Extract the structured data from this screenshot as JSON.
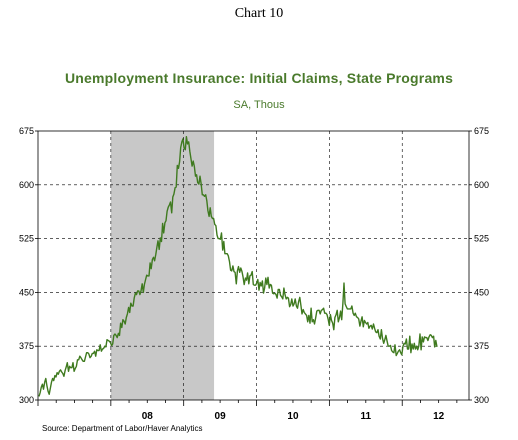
{
  "chart_number": "Chart 10",
  "colors": {
    "series_line": "#3f7a1f",
    "title_text": "#4a7a2c",
    "recession_shade": "#c8c8c8",
    "grid": "#000000"
  },
  "chart_data": {
    "type": "line",
    "title": "Unemployment Insurance: Initial Claims, State Programs",
    "subtitle": "SA, Thous",
    "source": "Source:  Department of Labor/Haver Analytics",
    "ylim": [
      300,
      675
    ],
    "yticks_left": [
      "675",
      "600",
      "525",
      "450",
      "375",
      "300"
    ],
    "yticks_right": [
      "675",
      "600",
      "525",
      "450",
      "375",
      "300"
    ],
    "ytick_values": [
      675,
      600,
      525,
      450,
      375,
      300
    ],
    "xlim": [
      "2007-01",
      "2012-12"
    ],
    "xtick_labels": [
      "08",
      "09",
      "10",
      "11",
      "12"
    ],
    "grid": true,
    "grid_style": "dashed",
    "recession_shading": {
      "start": "2008-01",
      "end": "2009-06"
    },
    "series": [
      {
        "frequency": "weekly",
        "x_start": "2007-01-06",
        "x_end": "2012-06-23",
        "values": [
          305,
          310,
          318,
          322,
          315,
          325,
          330,
          320,
          312,
          308,
          316,
          325,
          330,
          327,
          334,
          332,
          338,
          336,
          340,
          342,
          339,
          337,
          333,
          341,
          346,
          352,
          340,
          347,
          345,
          345,
          352,
          340,
          344,
          347,
          356,
          356,
          361,
          359,
          356,
          354,
          354,
          360,
          366,
          366,
          364,
          359,
          361,
          365,
          365,
          368,
          361,
          370,
          369,
          369,
          377,
          368,
          371,
          372,
          375,
          374,
          384,
          383,
          382,
          380,
          376,
          378,
          390,
          392,
          390,
          387,
          393,
          390,
          407,
          401,
          412,
          410,
          406,
          415,
          420,
          429,
          422,
          435,
          431,
          431,
          442,
          449,
          447,
          452,
          452,
          447,
          452,
          462,
          450,
          461,
          468,
          474,
          473,
          473,
          491,
          483,
          496,
          499,
          494,
          503,
          513,
          522,
          510,
          526,
          521,
          546,
          533,
          547,
          550,
          563,
          569,
          572,
          576,
          561,
          583,
          587,
          596,
          597,
          627,
          623,
          632,
          652,
          660,
          664,
          651,
          649,
          667,
          657,
          660,
          647,
          637,
          626,
          633,
          626,
          612,
          614,
          603,
          601,
          612,
          602,
          586,
          586,
          584,
          586,
          578,
          564,
          556,
          568,
          556,
          553,
          553,
          545,
          543,
          530,
          525,
          525,
          524,
          533,
          509,
          521,
          504,
          504,
          504,
          501,
          493,
          481,
          480,
          487,
          479,
          478,
          462,
          480,
          486,
          478,
          484,
          479,
          471,
          461,
          470,
          467,
          477,
          462,
          473,
          474,
          479,
          461,
          460,
          460,
          463,
          468,
          453,
          464,
          459,
          466,
          449,
          456,
          470,
          461,
          471,
          456,
          461,
          460,
          449,
          448,
          449,
          447,
          442,
          454,
          454,
          446,
          444,
          441,
          456,
          447,
          441,
          443,
          442,
          430,
          433,
          441,
          431,
          434,
          441,
          431,
          428,
          437,
          443,
          432,
          420,
          426,
          422,
          420,
          418,
          409,
          418,
          407,
          428,
          409,
          412,
          406,
          414,
          424,
          425,
          425,
          420,
          425,
          426,
          428,
          421,
          421,
          419,
          413,
          404,
          419,
          411,
          407,
          398,
          415,
          419,
          425,
          409,
          415,
          424,
          412,
          435,
          463,
          434,
          430,
          427,
          427,
          427,
          427,
          431,
          421,
          418,
          421,
          416,
          415,
          413,
          403,
          410,
          416,
          402,
          411,
          408,
          406,
          408,
          400,
          403,
          404,
          399,
          406,
          400,
          395,
          394,
          398,
          389,
          385,
          398,
          386,
          379,
          384,
          390,
          382,
          375,
          375,
          376,
          369,
          367,
          366,
          377,
          362,
          365,
          368,
          370,
          366,
          363,
          375,
          379,
          378,
          385,
          371,
          371,
          389,
          366,
          378,
          371,
          379,
          371,
          375,
          370,
          375,
          392,
          370,
          388,
          381,
          388,
          387,
          387,
          383,
          388,
          391,
          390,
          387,
          389,
          374,
          383,
          374
        ]
      }
    ]
  }
}
